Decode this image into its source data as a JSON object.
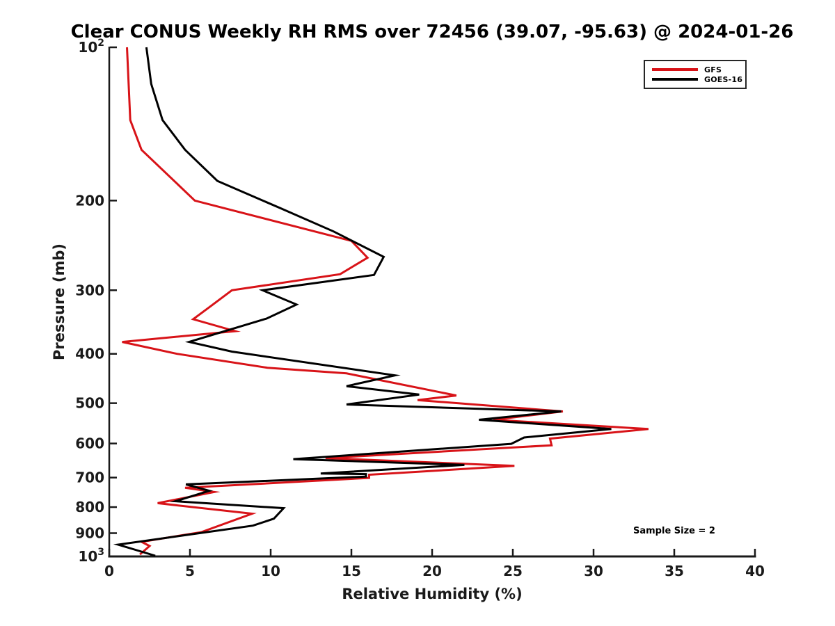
{
  "title": "Clear CONUS Weekly RH RMS over 72456 (39.07, -95.63) @ 2024-01-26",
  "xlabel": "Relative Humidity (%)",
  "ylabel": "Pressure (mb)",
  "legend": {
    "position": "upper-right",
    "items": [
      {
        "label": "GFS",
        "color": "#d81318"
      },
      {
        "label": "GOES-16",
        "color": "#000000"
      }
    ]
  },
  "chart_data": {
    "type": "line",
    "title": "Clear CONUS Weekly RH RMS over 72456 (39.07, -95.63) @ 2024-01-26",
    "xlabel": "Relative Humidity (%)",
    "ylabel": "Pressure (mb)",
    "annotation_text": "Sample Size = 2",
    "sample_size": 2,
    "station": "72456",
    "station_lat": 39.07,
    "station_lon": -95.63,
    "date": "2024-01-26",
    "x_axis": {
      "min": 0,
      "max": 40,
      "ticks": [
        0,
        5,
        10,
        15,
        20,
        25,
        30,
        35,
        40
      ],
      "grid": false
    },
    "y_axis": {
      "scale": "log",
      "inverted": true,
      "min": 100,
      "max": 1000,
      "ticks": [
        {
          "value": 100,
          "base": "10",
          "exp": "2"
        },
        {
          "value": 200,
          "label": "200"
        },
        {
          "value": 300,
          "label": "300"
        },
        {
          "value": 400,
          "label": "400"
        },
        {
          "value": 500,
          "label": "500"
        },
        {
          "value": 600,
          "label": "600"
        },
        {
          "value": 700,
          "label": "700"
        },
        {
          "value": 800,
          "label": "800"
        },
        {
          "value": 900,
          "label": "900"
        },
        {
          "value": 1000,
          "base": "10",
          "exp": "3"
        }
      ]
    },
    "series": [
      {
        "name": "GFS",
        "color": "#d81318",
        "line_width": 3,
        "points_rh_pressure": [
          [
            1.1,
            100
          ],
          [
            1.3,
            139
          ],
          [
            2.0,
            159
          ],
          [
            5.3,
            200
          ],
          [
            15.0,
            240
          ],
          [
            16.0,
            259
          ],
          [
            14.3,
            279
          ],
          [
            7.6,
            300
          ],
          [
            6.2,
            324
          ],
          [
            5.2,
            342
          ],
          [
            7.8,
            361
          ],
          [
            0.8,
            379
          ],
          [
            4.2,
            400
          ],
          [
            9.8,
            426
          ],
          [
            14.7,
            437
          ],
          [
            21.5,
            483
          ],
          [
            19.1,
            493
          ],
          [
            28.1,
            519
          ],
          [
            23.8,
            539
          ],
          [
            33.4,
            562
          ],
          [
            27.3,
            587
          ],
          [
            27.4,
            605
          ],
          [
            13.4,
            641
          ],
          [
            25.1,
            664
          ],
          [
            16.1,
            691
          ],
          [
            16.1,
            701
          ],
          [
            4.7,
            733
          ],
          [
            6.5,
            747
          ],
          [
            3.0,
            786
          ],
          [
            8.85,
            824
          ],
          [
            5.7,
            896
          ],
          [
            2.0,
            936
          ],
          [
            2.5,
            954
          ],
          [
            1.9,
            991
          ]
        ]
      },
      {
        "name": "GOES-16",
        "color": "#000000",
        "line_width": 3,
        "points_rh_pressure": [
          [
            2.3,
            100
          ],
          [
            2.6,
            118
          ],
          [
            3.3,
            139
          ],
          [
            4.7,
            159
          ],
          [
            6.7,
            183
          ],
          [
            10.6,
            207
          ],
          [
            13.9,
            230
          ],
          [
            17.0,
            258
          ],
          [
            16.4,
            280
          ],
          [
            9.5,
            300
          ],
          [
            11.6,
            320
          ],
          [
            9.75,
            341
          ],
          [
            4.95,
            379
          ],
          [
            7.6,
            396
          ],
          [
            17.7,
            441
          ],
          [
            14.7,
            463
          ],
          [
            19.2,
            481
          ],
          [
            14.7,
            503
          ],
          [
            28.0,
            519
          ],
          [
            22.9,
            539
          ],
          [
            31.1,
            562
          ],
          [
            25.7,
            584
          ],
          [
            24.9,
            601
          ],
          [
            11.4,
            644
          ],
          [
            22.0,
            661
          ],
          [
            13.1,
            687
          ],
          [
            15.9,
            689
          ],
          [
            15.9,
            697
          ],
          [
            4.75,
            722
          ],
          [
            6.2,
            743
          ],
          [
            4.1,
            779
          ],
          [
            10.8,
            804
          ],
          [
            10.2,
            843
          ],
          [
            8.9,
            870
          ],
          [
            0.55,
            948
          ],
          [
            2.85,
            997
          ]
        ]
      }
    ]
  }
}
